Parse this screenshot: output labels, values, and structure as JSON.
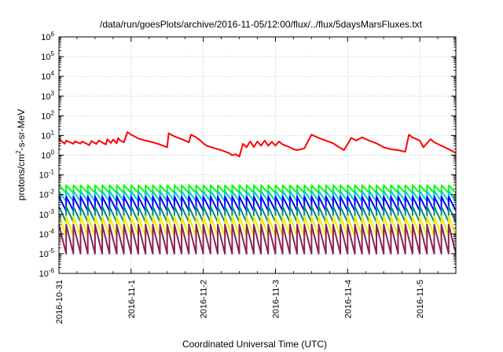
{
  "chart_data": {
    "type": "line",
    "title": "/data/run/goesPlots/archive/2016-11-05/12:00/flux/../flux/5daysMarsFluxes.txt",
    "xlabel": "Coordinated Universal Time (UTC)",
    "ylabel_parts": [
      "protons/cm",
      "2",
      "-s-sr-MeV"
    ],
    "yscale": "log",
    "ylim": [
      1e-06,
      1000000.0
    ],
    "xlim": [
      0,
      5.5
    ],
    "grid": true,
    "x_ticks": [
      {
        "x": 0,
        "label": "2016-10-31"
      },
      {
        "x": 1,
        "label": "2016-11-1"
      },
      {
        "x": 2,
        "label": "2016-11-2"
      },
      {
        "x": 3,
        "label": "2016-11-3"
      },
      {
        "x": 4,
        "label": "2016-11-4"
      },
      {
        "x": 5,
        "label": "2016-11-5"
      }
    ],
    "y_ticks": [
      {
        "exp": -6,
        "base": "10",
        "power": "-6"
      },
      {
        "exp": -5,
        "base": "10",
        "power": "-5"
      },
      {
        "exp": -4,
        "base": "10",
        "power": "-4"
      },
      {
        "exp": -3,
        "base": "10",
        "power": "-3"
      },
      {
        "exp": -2,
        "base": "10",
        "power": "-2"
      },
      {
        "exp": -1,
        "base": "10",
        "power": "-1"
      },
      {
        "exp": 0,
        "base": "10",
        "power": "0"
      },
      {
        "exp": 1,
        "base": "10",
        "power": "1"
      },
      {
        "exp": 2,
        "base": "10",
        "power": "2"
      },
      {
        "exp": 3,
        "base": "10",
        "power": "3"
      },
      {
        "exp": 4,
        "base": "10",
        "power": "4"
      },
      {
        "exp": 5,
        "base": "10",
        "power": "5"
      },
      {
        "exp": 6,
        "base": "10",
        "power": "6"
      }
    ],
    "series": [
      {
        "color": "#ff0000",
        "x": [
          0,
          0.08,
          0.1,
          0.2,
          0.22,
          0.3,
          0.32,
          0.42,
          0.45,
          0.52,
          0.55,
          0.65,
          0.67,
          0.72,
          0.75,
          0.8,
          0.82,
          0.85,
          0.9,
          0.95,
          1.0,
          1.1,
          1.2,
          1.3,
          1.4,
          1.5,
          1.52,
          1.6,
          1.7,
          1.8,
          1.83,
          1.9,
          1.95,
          2.0,
          2.05,
          2.15,
          2.25,
          2.35,
          2.4,
          2.45,
          2.5,
          2.55,
          2.6,
          2.65,
          2.7,
          2.75,
          2.8,
          2.85,
          2.9,
          2.95,
          3.0,
          3.05,
          3.1,
          3.15,
          3.2,
          3.25,
          3.3,
          3.4,
          3.5,
          3.6,
          3.7,
          3.8,
          3.85,
          3.95,
          4.05,
          4.12,
          4.2,
          4.3,
          4.4,
          4.5,
          4.6,
          4.7,
          4.8,
          4.85,
          4.9,
          5.0,
          5.05,
          5.15,
          5.2,
          5.3,
          5.4,
          5.5
        ],
        "values": [
          6.5,
          3.8,
          5.5,
          3.8,
          5.0,
          3.9,
          5.0,
          3.2,
          5.2,
          3.7,
          5.5,
          3.5,
          6.5,
          4.2,
          6.2,
          4.0,
          7.5,
          5.5,
          4.5,
          15.0,
          11.0,
          7.0,
          5.5,
          4.5,
          3.5,
          2.5,
          13.0,
          9.0,
          6.5,
          4.5,
          11.0,
          8.0,
          6.0,
          4.0,
          3.0,
          2.3,
          1.8,
          1.3,
          1.0,
          1.1,
          0.85,
          3.8,
          2.5,
          5.0,
          2.6,
          5.0,
          3.0,
          5.5,
          3.0,
          4.8,
          3.0,
          5.0,
          3.5,
          3.0,
          2.5,
          2.0,
          1.8,
          2.2,
          11.0,
          7.5,
          5.5,
          4.0,
          3.0,
          1.8,
          7.5,
          5.5,
          8.0,
          5.5,
          4.0,
          2.5,
          2.0,
          1.8,
          1.5,
          11.0,
          8.0,
          5.5,
          2.5,
          6.5,
          4.5,
          3.0,
          2.0,
          1.3
        ]
      },
      {
        "color": "#00ff00",
        "x_start": 0,
        "x_end": 5.5,
        "period": 0.1,
        "peak": 0.03,
        "trough": 0.012
      },
      {
        "color": "#00cccc",
        "x_start": 0,
        "x_end": 5.5,
        "period": 0.1,
        "peak": 0.015,
        "trough": 0.0045
      },
      {
        "color": "#0000ff",
        "x_start": 0,
        "x_end": 5.5,
        "period": 0.1,
        "peak": 0.008,
        "trough": 0.0015
      },
      {
        "color": "#008888",
        "x_start": 0,
        "x_end": 5.5,
        "period": 0.1,
        "peak": 0.0025,
        "trough": 0.0004
      },
      {
        "color": "#eeee00",
        "x_start": 0,
        "x_end": 5.5,
        "period": 0.1,
        "peak": 0.0008,
        "trough": 8e-05
      },
      {
        "color": "#8b2252",
        "x_start": 0,
        "x_end": 5.5,
        "period": 0.1,
        "peak": 0.0003,
        "trough": 1e-05
      }
    ]
  }
}
